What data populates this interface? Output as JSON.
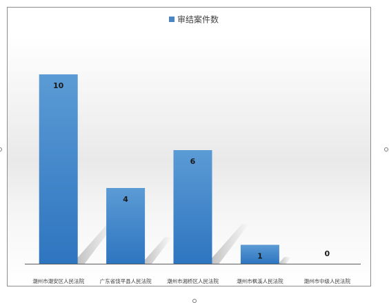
{
  "chart_data": {
    "type": "bar",
    "categories": [
      "潮州市潮安区人民法院",
      "广东省饶平县人民法院",
      "潮州市湘桥区人民法院",
      "潮州市枫溪人民法院",
      "潮州市中级人民法院"
    ],
    "series": [
      {
        "name": "审结案件数",
        "values": [
          10,
          4,
          6,
          1,
          0
        ]
      }
    ],
    "data_labels": [
      "10",
      "4",
      "6",
      "1",
      "0"
    ],
    "legend": "top-center",
    "grid": false,
    "ylim": [
      0,
      10
    ]
  },
  "colors": {
    "bar_top": "#5b9bd5",
    "bar_bottom": "#2e75c0",
    "legend_swatch": "#4a86c6",
    "shadow": "#c9c9c9"
  }
}
